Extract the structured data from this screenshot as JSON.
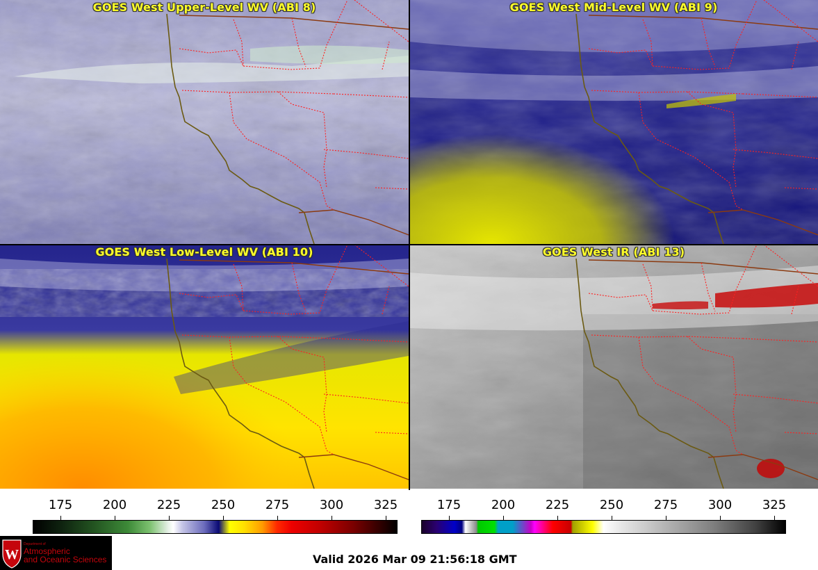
{
  "panels": [
    {
      "title": "GOES West Upper-Level WV (ABI 8)"
    },
    {
      "title": "GOES West Mid-Level WV (ABI 9)"
    },
    {
      "title": "GOES West Low-Level WV (ABI 10)"
    },
    {
      "title": "GOES West IR (ABI 13)"
    }
  ],
  "scales": {
    "left": {
      "ticks": [
        "175",
        "200",
        "225",
        "250",
        "275",
        "300",
        "325"
      ],
      "colormap": "wv"
    },
    "right": {
      "ticks": [
        "175",
        "200",
        "225",
        "250",
        "275",
        "300",
        "325"
      ],
      "colormap": "ir"
    }
  },
  "logo": {
    "department": "Department of",
    "line1": "Atmospheric",
    "line2": "and Oceanic Sciences",
    "seal": "W"
  },
  "valid_time": "Valid 2026 Mar 09 21:56:18 GMT",
  "colors": {
    "title_text": "#ffff2a",
    "state_borders": "#ff2020",
    "coastline": "#6b5a12",
    "logo_red": "#c5050c"
  }
}
